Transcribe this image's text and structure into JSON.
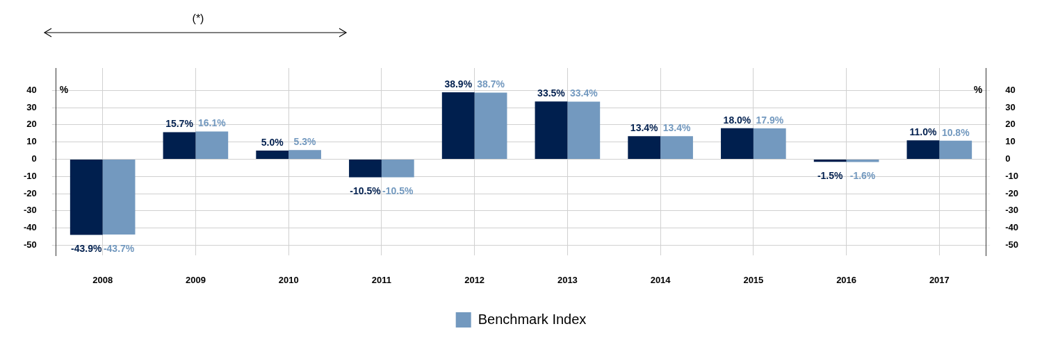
{
  "chart_data": {
    "type": "bar",
    "categories": [
      "2008",
      "2009",
      "2010",
      "2011",
      "2012",
      "2013",
      "2014",
      "2015",
      "2016",
      "2017"
    ],
    "series": [
      {
        "color": "#001f4e",
        "values": [
          -43.9,
          15.7,
          5.0,
          -10.5,
          38.9,
          33.5,
          13.4,
          18.0,
          -1.5,
          11.0
        ],
        "value_labels": [
          "-43.9%",
          "15.7%",
          "5.0%",
          "-10.5%",
          "38.9%",
          "33.5%",
          "13.4%",
          "18.0%",
          "-1.5%",
          "11.0%"
        ]
      },
      {
        "name": "Benchmark Index",
        "color": "#7399bf",
        "values": [
          -43.7,
          16.1,
          5.3,
          -10.5,
          38.7,
          33.4,
          13.4,
          17.9,
          -1.6,
          10.8
        ],
        "value_labels": [
          "-43.7%",
          "16.1%",
          "5.3%",
          "-10.5%",
          "38.7%",
          "33.4%",
          "13.4%",
          "17.9%",
          "-1.6%",
          "10.8%"
        ]
      }
    ],
    "ylabel": "%",
    "y2label": "%",
    "ylim": [
      -56,
      53
    ],
    "yticks": [
      -50,
      -40,
      -30,
      -20,
      -10,
      0,
      10,
      20,
      30,
      40
    ],
    "y2lim": [
      -56,
      53
    ],
    "y2ticks": [
      -50,
      -40,
      -30,
      -20,
      -10,
      0,
      10,
      20,
      30,
      40
    ],
    "grid": true,
    "legend": "bottom",
    "annotations": [
      "(*)"
    ]
  }
}
